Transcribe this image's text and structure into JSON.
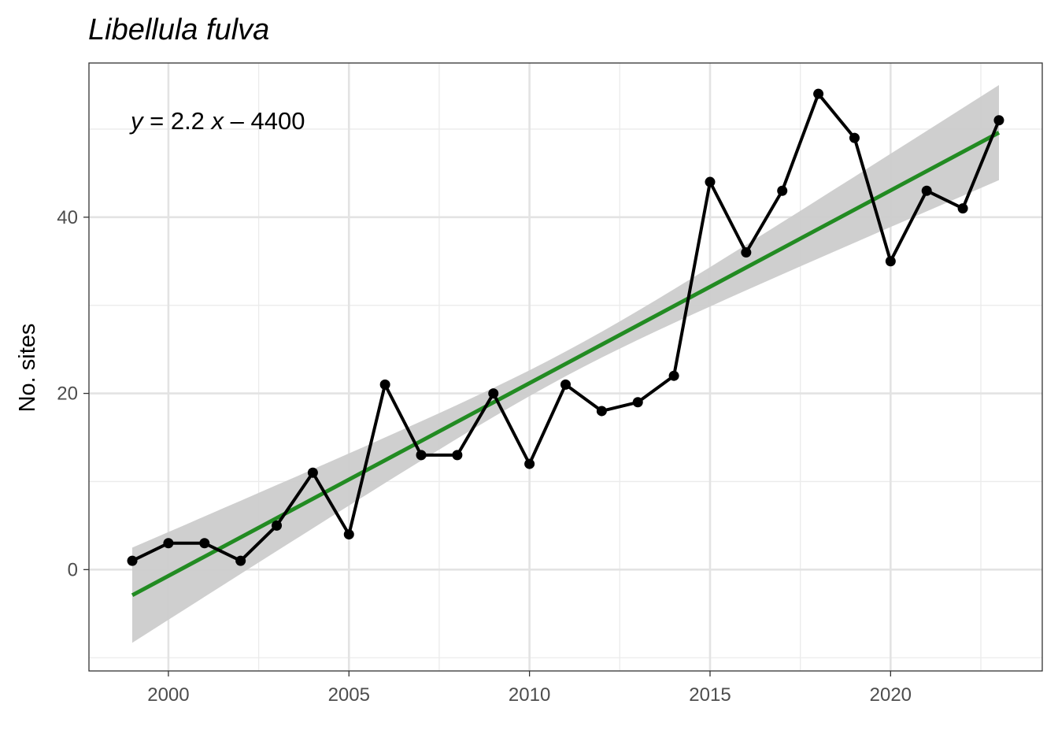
{
  "chart_data": {
    "type": "line",
    "title": "Libellula fulva",
    "xlabel": "",
    "ylabel": "No. sites",
    "xlim": [
      1997.8,
      2024.2
    ],
    "ylim": [
      -11.5,
      57.5
    ],
    "x_ticks": [
      2000,
      2005,
      2010,
      2015,
      2020
    ],
    "x_tick_labels": [
      "2000",
      "2005",
      "2010",
      "2015",
      "2020"
    ],
    "y_ticks": [
      0,
      20,
      40
    ],
    "y_tick_labels": [
      "0",
      "20",
      "40"
    ],
    "grid": true,
    "x": [
      1999,
      2000,
      2001,
      2002,
      2003,
      2004,
      2005,
      2006,
      2007,
      2008,
      2009,
      2010,
      2011,
      2012,
      2013,
      2014,
      2015,
      2016,
      2017,
      2018,
      2019,
      2020,
      2021,
      2022,
      2023
    ],
    "series": [
      {
        "values": [
          1,
          3,
          3,
          1,
          5,
          11,
          4,
          21,
          13,
          13,
          20,
          12,
          21,
          18,
          19,
          22,
          44,
          36,
          43,
          54,
          49,
          35,
          43,
          41,
          51
        ],
        "color": "#000000"
      }
    ],
    "trend": {
      "x": [
        1999,
        2023
      ],
      "y": [
        -2.9,
        49.6
      ],
      "color": "#228B22",
      "confidence_band": {
        "x": [
          1999,
          2011,
          2023
        ],
        "lower": [
          -8.3,
          21.6,
          44.3
        ],
        "upper": [
          2.6,
          24.4,
          55.0
        ],
        "color": "#cccccc"
      },
      "equation": {
        "y_var": "y",
        "equals": " = 2.2 ",
        "x_var": "x",
        "rest": " – 4400"
      }
    }
  }
}
